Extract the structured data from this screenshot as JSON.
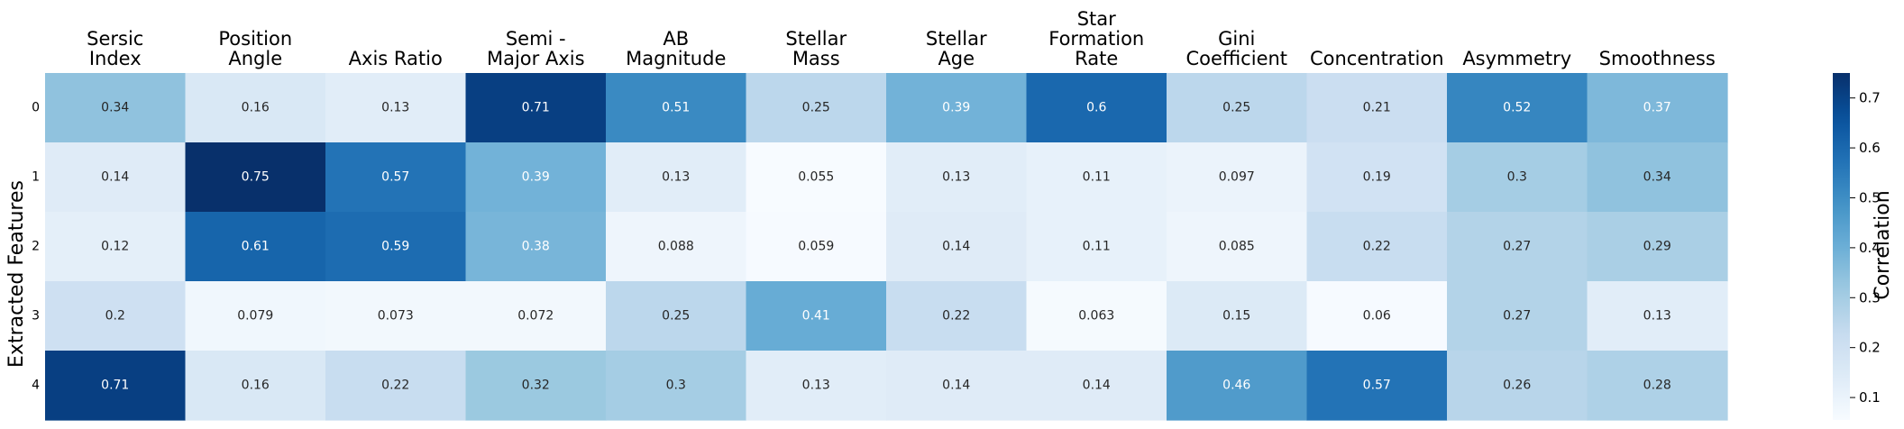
{
  "chart_data": {
    "type": "heatmap",
    "x_categories": [
      [
        "Sersic",
        "Index"
      ],
      [
        "Position",
        "Angle"
      ],
      [
        "Axis Ratio"
      ],
      [
        "Semi -",
        "Major Axis"
      ],
      [
        "AB",
        "Magnitude"
      ],
      [
        "Stellar",
        "Mass"
      ],
      [
        "Stellar",
        "Age"
      ],
      [
        "Star",
        "Formation",
        "Rate"
      ],
      [
        "Gini",
        "Coefficient"
      ],
      [
        "Concentration"
      ],
      [
        "Asymmetry"
      ],
      [
        "Smoothness"
      ]
    ],
    "y_categories": [
      "0",
      "1",
      "2",
      "3",
      "4"
    ],
    "ylabel": "Extracted Features",
    "values": [
      [
        0.34,
        0.16,
        0.13,
        0.71,
        0.51,
        0.25,
        0.39,
        0.6,
        0.25,
        0.21,
        0.52,
        0.37
      ],
      [
        0.14,
        0.75,
        0.57,
        0.39,
        0.13,
        0.055,
        0.13,
        0.11,
        0.097,
        0.19,
        0.3,
        0.34
      ],
      [
        0.12,
        0.61,
        0.59,
        0.38,
        0.088,
        0.059,
        0.14,
        0.11,
        0.085,
        0.22,
        0.27,
        0.29
      ],
      [
        0.2,
        0.079,
        0.073,
        0.072,
        0.25,
        0.41,
        0.22,
        0.063,
        0.15,
        0.06,
        0.27,
        0.13
      ],
      [
        0.71,
        0.16,
        0.22,
        0.32,
        0.3,
        0.13,
        0.14,
        0.14,
        0.46,
        0.57,
        0.26,
        0.28
      ]
    ],
    "colorbar": {
      "label": "Correlation",
      "range": [
        0.055,
        0.75
      ],
      "ticks": [
        0.1,
        0.2,
        0.3,
        0.4,
        0.5,
        0.6,
        0.7
      ],
      "colormap": "Blues"
    }
  }
}
